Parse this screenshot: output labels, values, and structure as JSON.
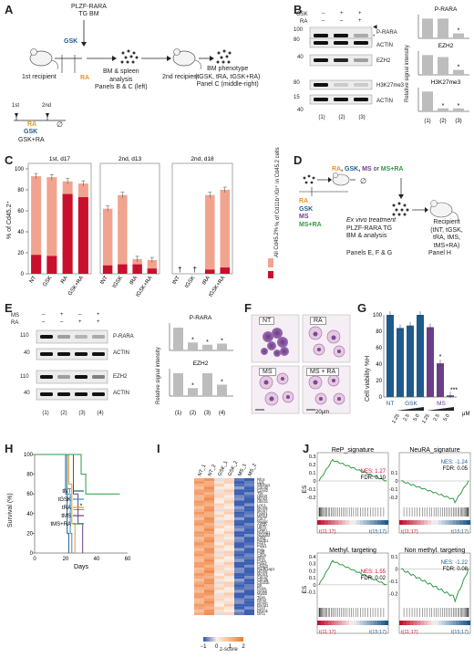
{
  "panel_letters": [
    "A",
    "B",
    "C",
    "D",
    "E",
    "F",
    "G",
    "H",
    "I",
    "J"
  ],
  "colors": {
    "light": "#f0a48f",
    "dark": "#c8102e",
    "blue": "#1e5b8c",
    "purple": "#6b3e88",
    "green": "#2e9b44",
    "orange": "#e8961e",
    "gray": "#bdbdbd",
    "heat_high": "#ef7e3a",
    "heat_low": "#3b5fb3"
  },
  "A": {
    "title_l1": "PLZF-RARA",
    "title_l2": "TG BM",
    "gsk": "GSK",
    "ra": "RA",
    "first_recipient": "1st recipient",
    "analysis_l1": "BM & spleen",
    "analysis_l2": "analysis",
    "analysis_l3": "Panels B & C (left)",
    "second_recipient": "2nd recipient",
    "pheno_l1": "BM phenotype",
    "pheno_l2": "(tGSK, tRA, tGSK+RA)",
    "pheno_l3": "Panel C (middle-right)",
    "tl_1st": "1st",
    "tl_2nd": "2nd",
    "tl_null": "∅",
    "tl_ra": "RA",
    "tl_gsk": "GSK",
    "tl_gskra": "GSK+RA"
  },
  "B": {
    "gsk_label": "GSK",
    "ra_label": "RA",
    "gsk_signs": [
      "–",
      "+",
      "+"
    ],
    "ra_signs": [
      "–",
      "–",
      "+"
    ],
    "mw": [
      "100",
      "80",
      "40",
      "80",
      "15",
      "40"
    ],
    "bands": [
      "P-RARA",
      "ACTIN",
      "EZH2",
      "H3K27me3",
      "ACTIN"
    ],
    "lanes": [
      "(1)",
      "(2)",
      "(3)"
    ],
    "star": "*",
    "ylabel": "Relative signal intensity"
  },
  "C": {
    "ylabel": "% of Cd45.2⁺",
    "y_ticks": [
      "100",
      "80",
      "60",
      "40",
      "20",
      "0"
    ],
    "titles": [
      "1st, d17",
      "2nd, d13",
      "2nd, d18"
    ],
    "legend_all": "All Cd45.2%",
    "legend_cd11b": "% of Cd11b⁺/Gr⁺ in Cd45.2 cells",
    "dagger": "†"
  },
  "D": {
    "top_ra": "RA",
    "top_gsk": "GSK",
    "top_ms": "MS",
    "top_or": "or",
    "top_msra": "MS+RA",
    "ex_l1": "Ex vivo treatment",
    "ex_l2": "PLZF-RARA TG",
    "ex_l3": "BM & analysis",
    "rec_l1": "Recipient",
    "rec_l2": "(tNT, tGSK,",
    "rec_l3": "tRA, tMS, tMS+RA)",
    "panels_efg": "Panels E, F & G",
    "panel_h": "Panel H",
    "list": [
      "RA",
      "GSK",
      "MS",
      "MS+RA"
    ],
    "null": "∅",
    "comma": ","
  },
  "E": {
    "ms_label": "MS",
    "ra_label": "RA",
    "ms_signs": [
      "–",
      "+",
      "–",
      "+"
    ],
    "ra_signs": [
      "–",
      "–",
      "+",
      "+"
    ],
    "mw": [
      "110",
      "40",
      "110",
      "40"
    ],
    "bands": [
      "P-RARA",
      "ACTIN",
      "EZH2",
      "ACTIN"
    ],
    "lanes": [
      "(1)",
      "(2)",
      "(3)",
      "(4)"
    ],
    "ylabel": "Relative signal intensity"
  },
  "F": {
    "labels": [
      "NT",
      "RA",
      "MS",
      "MS + RA"
    ],
    "scale": "20μm"
  },
  "G": {
    "ylabel": "Cell viability %H",
    "y_ticks": [
      "100",
      "80",
      "60",
      "40",
      "20",
      "0"
    ],
    "group_labels": [
      "NT",
      "GSK",
      "MS"
    ],
    "x_ticks": [
      "1.25",
      "2.5",
      "5.0",
      "1.25",
      "2.5",
      "5.0"
    ],
    "unit": "μM",
    "star": "*",
    "stars3": "***"
  },
  "H": {
    "ylabel": "Survival (%)",
    "xlabel": "Days",
    "y_ticks": [
      "100",
      "80",
      "60",
      "40",
      "20",
      "0"
    ],
    "x_ticks": [
      "0",
      "20",
      "40",
      "60"
    ],
    "legend": [
      "tNT",
      "tGSK",
      "tRA",
      "tMS",
      "tMS+RA"
    ],
    "star": "*"
  },
  "I": {
    "cols": [
      "NT_1",
      "NT_2",
      "GSK_1",
      "GSK_2",
      "MS_1",
      "MS_2"
    ],
    "genes": [
      "Rfc4",
      "Lig1",
      "Shcbp1",
      "Cdca2",
      "Ccne2",
      "Tfrc",
      "Ube2t",
      "Mcm2",
      "Ube2c",
      "Lrrc1",
      "Mcm6",
      "Mcm7",
      "Fignl1",
      "Mcm4",
      "Cdc7",
      "Nuggc",
      "Asf1b",
      "Uhrf1",
      "Clspn",
      "Nusap1",
      "Ncapd2",
      "Kif22",
      "Rad51",
      "Fen1",
      "Pola1",
      "Polq",
      "Polb",
      "Cdc6",
      "Rfc5",
      "Pcna",
      "Pola2",
      "Ckap2",
      "Rad51ap1",
      "Mcm5",
      "Mcm3",
      "Cdca7",
      "Cdc45",
      "Chaf1b",
      "Dtl",
      "Pcna",
      "Gins2",
      "Mybl2",
      "Tipin",
      "Rrm2",
      "Gmnn",
      "Dnmt1",
      "Ccnf",
      "Dtymk",
      "Orc1"
    ],
    "scale_ticks": [
      "−1",
      "0",
      "1",
      "2"
    ],
    "scale_label": "z-score"
  },
  "J": {
    "plots": [
      {
        "title": "ReP_signature",
        "nes": "NES: 1.27",
        "fdr": "FDR: 0.10",
        "ylim": [
          -0.3,
          0.3
        ],
        "ticks": [
          "0.3",
          "0.2",
          "0.1",
          "0",
          "-0.1",
          "-0.2"
        ],
        "direction": "up"
      },
      {
        "title": "NeuRA_signature",
        "nes": "NES: -1.24",
        "fdr": "FDR: 0.05",
        "ylim": [
          -0.3,
          0.3
        ],
        "ticks": [
          "0.1",
          "0",
          "-0.1",
          "-0.2"
        ],
        "direction": "down"
      },
      {
        "title": "Methyl. targeting",
        "nes": "NES: 1.55",
        "fdr": "FDR: 0.02",
        "ylim": [
          -0.3,
          0.4
        ],
        "ticks": [
          "0.4",
          "0.3",
          "0.2",
          "0.1",
          "0",
          "-0.1"
        ],
        "direction": "up"
      },
      {
        "title": "Non methyl. targeting",
        "nes": "NES: -1.22",
        "fdr": "FDR: 0.08",
        "ylim": [
          -0.3,
          0.1
        ],
        "ticks": [
          "0.1",
          "0",
          "-0.1",
          "-0.2"
        ],
        "direction": "down"
      }
    ],
    "ylabel": "ES",
    "left_label": "t(11;17)",
    "right_label": "t(15;17)"
  },
  "chart_data": [
    {
      "panel": "B",
      "type": "bar",
      "title": "P-RARA",
      "categories": [
        "(1)",
        "(2)",
        "(3)"
      ],
      "values": [
        1.0,
        1.0,
        0.25
      ],
      "ylim": [
        0,
        1.2
      ],
      "annotations": [
        "*"
      ]
    },
    {
      "panel": "B",
      "type": "bar",
      "title": "EZH2",
      "categories": [
        "(1)",
        "(2)",
        "(3)"
      ],
      "values": [
        1.0,
        0.9,
        0.25
      ],
      "ylim": [
        0,
        1.2
      ],
      "annotations": [
        "*"
      ]
    },
    {
      "panel": "B",
      "type": "bar",
      "title": "H3K27me3",
      "categories": [
        "(1)",
        "(2)",
        "(3)"
      ],
      "values": [
        1.0,
        0.15,
        0.15
      ],
      "ylim": [
        0,
        1.2
      ],
      "annotations": [
        "*",
        "*"
      ]
    },
    {
      "panel": "C",
      "type": "bar",
      "title": "1st, d17",
      "categories": [
        "NT",
        "GSK",
        "RA",
        "GSK+RA"
      ],
      "series": [
        {
          "name": "All Cd45.2%",
          "values": [
            93,
            92,
            88,
            86
          ]
        },
        {
          "name": "% of Cd11b⁺/Gr⁺ in Cd45.2 cells",
          "values": [
            18,
            17,
            76,
            73
          ]
        }
      ],
      "ylim": [
        0,
        100
      ]
    },
    {
      "panel": "C",
      "type": "bar",
      "title": "2nd, d13",
      "categories": [
        "tNT",
        "tGSK",
        "tRA",
        "tGSK+RA"
      ],
      "series": [
        {
          "name": "All Cd45.2%",
          "values": [
            62,
            75,
            14,
            13
          ]
        },
        {
          "name": "% of Cd11b⁺/Gr⁺ in Cd45.2 cells",
          "values": [
            8,
            9,
            9,
            5
          ]
        }
      ],
      "ylim": [
        0,
        100
      ]
    },
    {
      "panel": "C",
      "type": "bar",
      "title": "2nd, d18",
      "categories": [
        "tNT",
        "tGSK",
        "tRA",
        "tGSK+RA"
      ],
      "series": [
        {
          "name": "All Cd45.2%",
          "values": [
            0,
            0,
            75,
            80
          ]
        },
        {
          "name": "% of Cd11b⁺/Gr⁺ in Cd45.2 cells",
          "values": [
            0,
            0,
            4,
            6
          ]
        }
      ],
      "ylim": [
        0,
        100
      ]
    },
    {
      "panel": "E",
      "type": "bar",
      "title": "P-RARA",
      "categories": [
        "(1)",
        "(2)",
        "(3)",
        "(4)"
      ],
      "values": [
        1.0,
        0.35,
        0.25,
        0.3
      ],
      "ylim": [
        0,
        1.2
      ]
    },
    {
      "panel": "E",
      "type": "bar",
      "title": "EZH2",
      "categories": [
        "(1)",
        "(2)",
        "(3)",
        "(4)"
      ],
      "values": [
        1.0,
        0.35,
        1.0,
        0.5
      ],
      "ylim": [
        0,
        1.2
      ]
    },
    {
      "panel": "G",
      "type": "bar",
      "title": "",
      "categories": [
        "NT",
        "GSK 1.25",
        "GSK 2.5",
        "GSK 5.0",
        "MS 1.25",
        "MS 2.5",
        "MS 5.0"
      ],
      "values": [
        100,
        84,
        87,
        100,
        85,
        41,
        2
      ],
      "ylim": [
        0,
        100
      ],
      "ylabel": "Cell viability %H"
    },
    {
      "panel": "H",
      "type": "line",
      "title": "",
      "xlabel": "Days",
      "ylabel": "Survival (%)",
      "xlim": [
        0,
        60
      ],
      "ylim": [
        0,
        100
      ],
      "series": [
        {
          "name": "tNT",
          "points": [
            [
              0,
              100
            ],
            [
              18,
              100
            ],
            [
              20,
              60
            ],
            [
              21,
              20
            ],
            [
              22,
              0
            ]
          ]
        },
        {
          "name": "tGSK",
          "points": [
            [
              0,
              100
            ],
            [
              19,
              100
            ],
            [
              21,
              60
            ],
            [
              23,
              20
            ],
            [
              24,
              0
            ]
          ]
        },
        {
          "name": "tRA",
          "points": [
            [
              0,
              100
            ],
            [
              20,
              100
            ],
            [
              22,
              70
            ],
            [
              24,
              30
            ],
            [
              26,
              0
            ]
          ]
        },
        {
          "name": "tMS",
          "points": [
            [
              0,
              100
            ],
            [
              22,
              100
            ],
            [
              25,
              60
            ],
            [
              28,
              30
            ],
            [
              31,
              0
            ]
          ]
        },
        {
          "name": "tMS+RA",
          "points": [
            [
              0,
              100
            ],
            [
              28,
              100
            ],
            [
              30,
              80
            ],
            [
              33,
              60
            ],
            [
              55,
              60
            ]
          ]
        }
      ]
    },
    {
      "panel": "I",
      "type": "heatmap",
      "columns": [
        "NT_1",
        "NT_2",
        "GSK_1",
        "GSK_2",
        "MS_1",
        "MS_2"
      ],
      "range": [
        -1,
        2
      ],
      "column_profile": [
        1.2,
        1.4,
        0.2,
        0.3,
        -0.9,
        -1.0
      ]
    }
  ]
}
